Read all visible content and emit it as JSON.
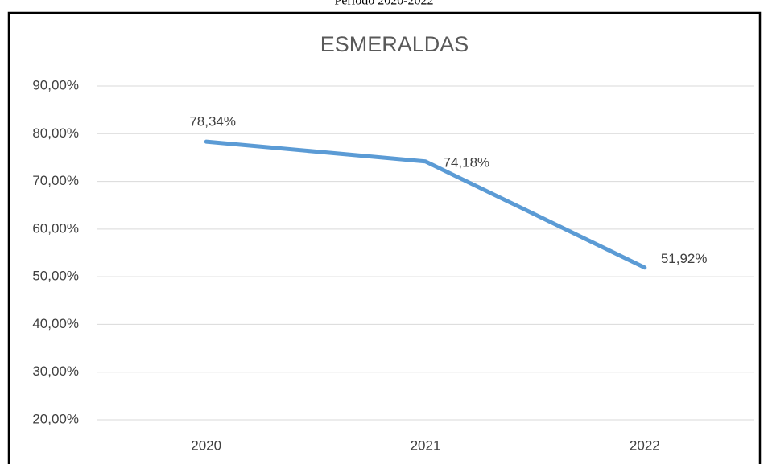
{
  "chart_data": {
    "type": "line",
    "subtitle": "Período 2020-2022",
    "title": "ESMERALDAS",
    "categories": [
      "2020",
      "2021",
      "2022"
    ],
    "values": [
      78.34,
      74.18,
      51.92
    ],
    "value_labels": [
      "78,34%",
      "74,18%",
      "51,92%"
    ],
    "color": "#5b9bd5",
    "ylim": [
      20,
      90
    ],
    "yticks": [
      {
        "value": 20,
        "label": "20,00%"
      },
      {
        "value": 30,
        "label": "30,00%"
      },
      {
        "value": 40,
        "label": "40,00%"
      },
      {
        "value": 50,
        "label": "50,00%"
      },
      {
        "value": 60,
        "label": "60,00%"
      },
      {
        "value": 70,
        "label": "70,00%"
      },
      {
        "value": 80,
        "label": "80,00%"
      },
      {
        "value": 90,
        "label": "90,00%"
      }
    ],
    "grid": true
  }
}
